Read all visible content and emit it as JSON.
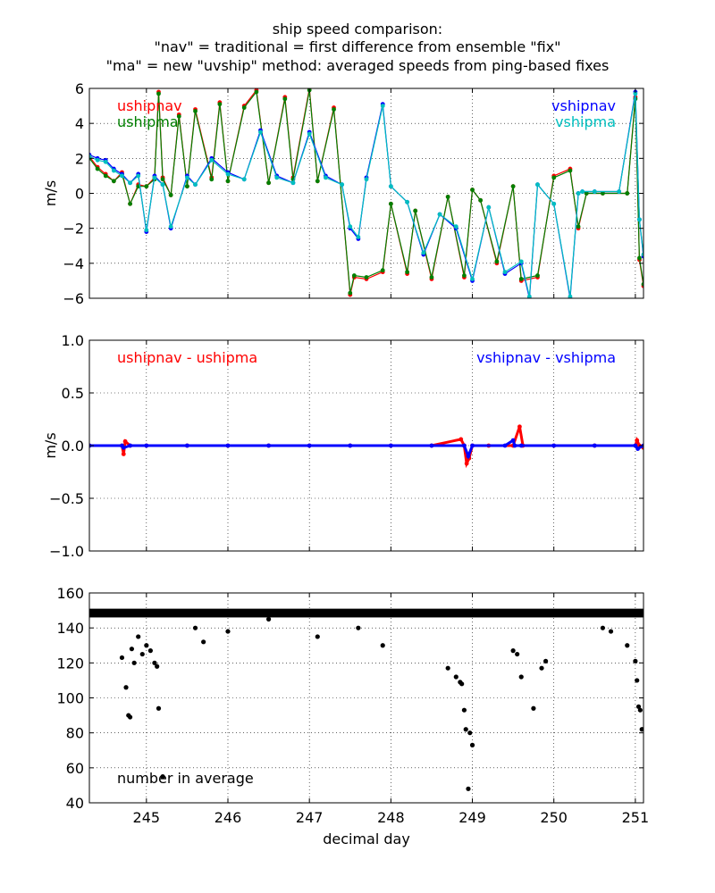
{
  "title_lines": [
    "ship speed comparison:",
    "\"nav\" = traditional = first difference from ensemble \"fix\"",
    "\"ma\" = new \"uvship\" method: averaged speeds from ping-based fixes"
  ],
  "xlabel": "decimal day",
  "colors": {
    "red": "#ff0000",
    "green": "#008000",
    "blue": "#0000ff",
    "cyan": "#00bfbf",
    "black": "#000000",
    "grid": "#000000"
  },
  "chart_data": [
    {
      "type": "line",
      "ylabel": "m/s",
      "xlim": [
        244.3,
        251.1
      ],
      "ylim": [
        -6,
        6
      ],
      "xticks": [
        245,
        246,
        247,
        248,
        249,
        250,
        251
      ],
      "yticks": [
        -6,
        -4,
        -2,
        0,
        2,
        4,
        6
      ],
      "ytick_labels": [
        "−6",
        "−4",
        "−2",
        "0",
        "2",
        "4",
        "6"
      ],
      "grid": true,
      "legend_left": [
        {
          "label": "ushipnav",
          "color": "#ff0000"
        },
        {
          "label": "ushipma",
          "color": "#008000"
        }
      ],
      "legend_right": [
        {
          "label": "vshipnav",
          "color": "#0000ff"
        },
        {
          "label": "vshipma",
          "color": "#00bfbf"
        }
      ],
      "series": [
        {
          "name": "ushipnav",
          "color": "#ff0000",
          "x": [
            244.3,
            244.4,
            244.5,
            244.6,
            244.7,
            244.8,
            244.9,
            245.0,
            245.1,
            245.15,
            245.2,
            245.3,
            245.4,
            245.5,
            245.6,
            245.8,
            245.9,
            246.0,
            246.2,
            246.35,
            246.5,
            246.7,
            246.8,
            247.0,
            247.1,
            247.3,
            247.5,
            247.55,
            247.7,
            247.9,
            248.0,
            248.2,
            248.3,
            248.5,
            248.7,
            248.9,
            249.0,
            249.1,
            249.3,
            249.5,
            249.6,
            249.8,
            250.0,
            250.2,
            250.3,
            250.4,
            250.6,
            250.9,
            251.0,
            251.05,
            251.1
          ],
          "y": [
            2.1,
            1.5,
            1.1,
            0.7,
            1.2,
            -0.6,
            0.5,
            0.4,
            0.9,
            5.8,
            0.9,
            -0.1,
            4.5,
            0.4,
            4.8,
            0.9,
            5.2,
            0.7,
            5.0,
            5.9,
            0.6,
            5.5,
            0.9,
            6.0,
            0.7,
            4.9,
            -5.8,
            -4.8,
            -4.9,
            -4.5,
            -0.6,
            -4.6,
            -1.0,
            -4.9,
            -0.2,
            -4.8,
            0.2,
            -0.4,
            -4.0,
            0.4,
            -5.0,
            -4.8,
            1.0,
            1.4,
            -2.0,
            0.0,
            0.0,
            0.0,
            5.5,
            -3.8,
            -5.3
          ]
        },
        {
          "name": "ushipma",
          "color": "#008000",
          "x": [
            244.3,
            244.4,
            244.5,
            244.6,
            244.7,
            244.8,
            244.9,
            245.0,
            245.1,
            245.15,
            245.2,
            245.3,
            245.4,
            245.5,
            245.6,
            245.8,
            245.9,
            246.0,
            246.2,
            246.35,
            246.5,
            246.7,
            246.8,
            247.0,
            247.1,
            247.3,
            247.5,
            247.55,
            247.7,
            247.9,
            248.0,
            248.2,
            248.3,
            248.5,
            248.7,
            248.9,
            249.0,
            249.1,
            249.3,
            249.5,
            249.6,
            249.8,
            250.0,
            250.2,
            250.3,
            250.4,
            250.6,
            250.9,
            251.0,
            251.05,
            251.1
          ],
          "y": [
            2.0,
            1.4,
            1.0,
            0.7,
            1.1,
            -0.6,
            0.4,
            0.4,
            0.8,
            5.7,
            0.8,
            -0.1,
            4.4,
            0.4,
            4.7,
            0.8,
            5.1,
            0.7,
            4.9,
            5.8,
            0.6,
            5.4,
            0.8,
            5.9,
            0.7,
            4.8,
            -5.7,
            -4.7,
            -4.8,
            -4.4,
            -0.6,
            -4.5,
            -1.0,
            -4.8,
            -0.2,
            -4.7,
            0.2,
            -0.4,
            -3.9,
            0.4,
            -4.9,
            -4.7,
            0.9,
            1.3,
            -1.9,
            0.0,
            0.0,
            0.0,
            5.4,
            -3.7,
            -5.2
          ]
        },
        {
          "name": "vshipnav",
          "color": "#0000ff",
          "x": [
            244.3,
            244.4,
            244.5,
            244.6,
            244.7,
            244.8,
            244.9,
            245.0,
            245.1,
            245.2,
            245.3,
            245.5,
            245.6,
            245.8,
            246.0,
            246.2,
            246.4,
            246.6,
            246.8,
            247.0,
            247.2,
            247.4,
            247.5,
            247.6,
            247.7,
            247.9,
            248.0,
            248.2,
            248.4,
            248.6,
            248.8,
            249.0,
            249.2,
            249.4,
            249.6,
            249.7,
            249.8,
            250.0,
            250.2,
            250.3,
            250.35,
            250.5,
            250.8,
            251.0,
            251.05,
            251.1
          ],
          "y": [
            2.2,
            2.0,
            1.9,
            1.4,
            1.1,
            0.6,
            1.1,
            -2.2,
            1.0,
            0.5,
            -2.0,
            1.0,
            0.5,
            2.0,
            1.2,
            0.8,
            3.6,
            1.0,
            0.6,
            3.5,
            1.0,
            0.5,
            -2.0,
            -2.6,
            0.9,
            5.1,
            0.4,
            -0.5,
            -3.5,
            -1.2,
            -2.0,
            -5.0,
            -0.8,
            -4.6,
            -4.0,
            -6.0,
            0.5,
            -0.6,
            -6.0,
            0.0,
            0.1,
            0.1,
            0.1,
            5.8,
            -1.5,
            -3.6
          ]
        },
        {
          "name": "vshipma",
          "color": "#00bfbf",
          "x": [
            244.3,
            244.4,
            244.5,
            244.6,
            244.7,
            244.8,
            244.9,
            245.0,
            245.1,
            245.2,
            245.3,
            245.5,
            245.6,
            245.8,
            246.0,
            246.2,
            246.4,
            246.6,
            246.8,
            247.0,
            247.2,
            247.4,
            247.5,
            247.6,
            247.7,
            247.9,
            248.0,
            248.2,
            248.4,
            248.6,
            248.8,
            249.0,
            249.2,
            249.4,
            249.6,
            249.7,
            249.8,
            250.0,
            250.2,
            250.3,
            250.35,
            250.5,
            250.8,
            251.0,
            251.05,
            251.1
          ],
          "y": [
            2.1,
            1.9,
            1.8,
            1.3,
            1.0,
            0.6,
            1.0,
            -2.1,
            0.9,
            0.5,
            -1.9,
            0.9,
            0.5,
            1.9,
            1.1,
            0.8,
            3.5,
            0.9,
            0.6,
            3.4,
            0.9,
            0.5,
            -1.9,
            -2.5,
            0.8,
            5.0,
            0.4,
            -0.5,
            -3.4,
            -1.2,
            -1.9,
            -4.9,
            -0.8,
            -4.5,
            -3.9,
            -5.9,
            0.5,
            -0.6,
            -5.9,
            0.0,
            0.1,
            0.1,
            0.1,
            5.7,
            -1.5,
            -3.5
          ]
        }
      ]
    },
    {
      "type": "line",
      "ylabel": "m/s",
      "xlim": [
        244.3,
        251.1
      ],
      "ylim": [
        -1.0,
        1.0
      ],
      "xticks": [
        245,
        246,
        247,
        248,
        249,
        250,
        251
      ],
      "yticks": [
        -1.0,
        -0.5,
        0.0,
        0.5,
        1.0
      ],
      "ytick_labels": [
        "−1.0",
        "−0.5",
        "0.0",
        "0.5",
        "1.0"
      ],
      "grid": true,
      "legend_left": [
        {
          "label": "ushipnav - ushipma",
          "color": "#ff0000"
        }
      ],
      "legend_right": [
        {
          "label": "vshipnav - vshipma",
          "color": "#0000ff"
        }
      ],
      "series": [
        {
          "name": "ushipnav - ushipma",
          "color": "#ff0000",
          "x": [
            244.3,
            244.7,
            244.72,
            244.74,
            244.8,
            245.0,
            245.5,
            246.0,
            246.5,
            247.0,
            247.5,
            248.0,
            248.5,
            248.86,
            248.9,
            248.93,
            248.96,
            249.0,
            249.2,
            249.5,
            249.58,
            249.62,
            250.0,
            250.5,
            251.0,
            251.02,
            251.05,
            251.1
          ],
          "y": [
            0.0,
            0.0,
            -0.08,
            0.04,
            0.0,
            0.0,
            0.0,
            0.0,
            0.0,
            0.0,
            0.0,
            0.0,
            0.0,
            0.06,
            0.0,
            -0.17,
            -0.12,
            0.0,
            0.0,
            0.0,
            0.18,
            0.0,
            0.0,
            0.0,
            0.0,
            0.05,
            0.0,
            -0.02
          ]
        },
        {
          "name": "vshipnav - vshipma",
          "color": "#0000ff",
          "x": [
            244.3,
            244.7,
            244.72,
            244.8,
            245.0,
            245.5,
            246.0,
            246.5,
            247.0,
            247.5,
            248.0,
            248.5,
            248.9,
            248.95,
            249.0,
            249.4,
            249.5,
            249.52,
            249.6,
            250.0,
            250.5,
            251.0,
            251.03,
            251.1
          ],
          "y": [
            0.0,
            0.0,
            -0.02,
            0.0,
            0.0,
            0.0,
            0.0,
            0.0,
            0.0,
            0.0,
            0.0,
            0.0,
            0.0,
            -0.1,
            0.0,
            0.0,
            0.05,
            0.0,
            0.0,
            0.0,
            0.0,
            0.0,
            -0.03,
            0.0
          ]
        }
      ]
    },
    {
      "type": "scatter",
      "ylabel": "",
      "xlim": [
        244.3,
        251.1
      ],
      "ylim": [
        40,
        160
      ],
      "xticks": [
        245,
        246,
        247,
        248,
        249,
        250,
        251
      ],
      "yticks": [
        40,
        60,
        80,
        100,
        120,
        140,
        160
      ],
      "ytick_labels": [
        "40",
        "60",
        "80",
        "100",
        "120",
        "140",
        "160"
      ],
      "grid": true,
      "legend_left": [
        {
          "label": "number in average",
          "color": "#000000"
        }
      ],
      "legend_right": [],
      "series": [
        {
          "name": "number in average",
          "color": "#000000",
          "x": [
            244.7,
            244.75,
            244.78,
            244.8,
            244.82,
            244.85,
            244.9,
            244.95,
            245.0,
            245.05,
            245.1,
            245.13,
            245.15,
            245.2,
            245.6,
            245.7,
            246.0,
            246.5,
            247.1,
            247.6,
            247.9,
            248.7,
            248.8,
            248.85,
            248.87,
            248.9,
            248.92,
            248.95,
            248.97,
            249.0,
            249.5,
            249.55,
            249.6,
            249.75,
            249.85,
            249.9,
            250.6,
            250.7,
            250.9,
            251.0,
            251.02,
            251.04,
            251.06,
            251.08
          ],
          "y": [
            123,
            106,
            90,
            89,
            128,
            120,
            135,
            125,
            130,
            127,
            120,
            118,
            94,
            55,
            140,
            132,
            138,
            145,
            135,
            140,
            130,
            117,
            112,
            109,
            108,
            93,
            82,
            48,
            80,
            73,
            127,
            125,
            112,
            94,
            117,
            121,
            140,
            138,
            130,
            121,
            110,
            95,
            93,
            82
          ]
        }
      ]
    }
  ]
}
